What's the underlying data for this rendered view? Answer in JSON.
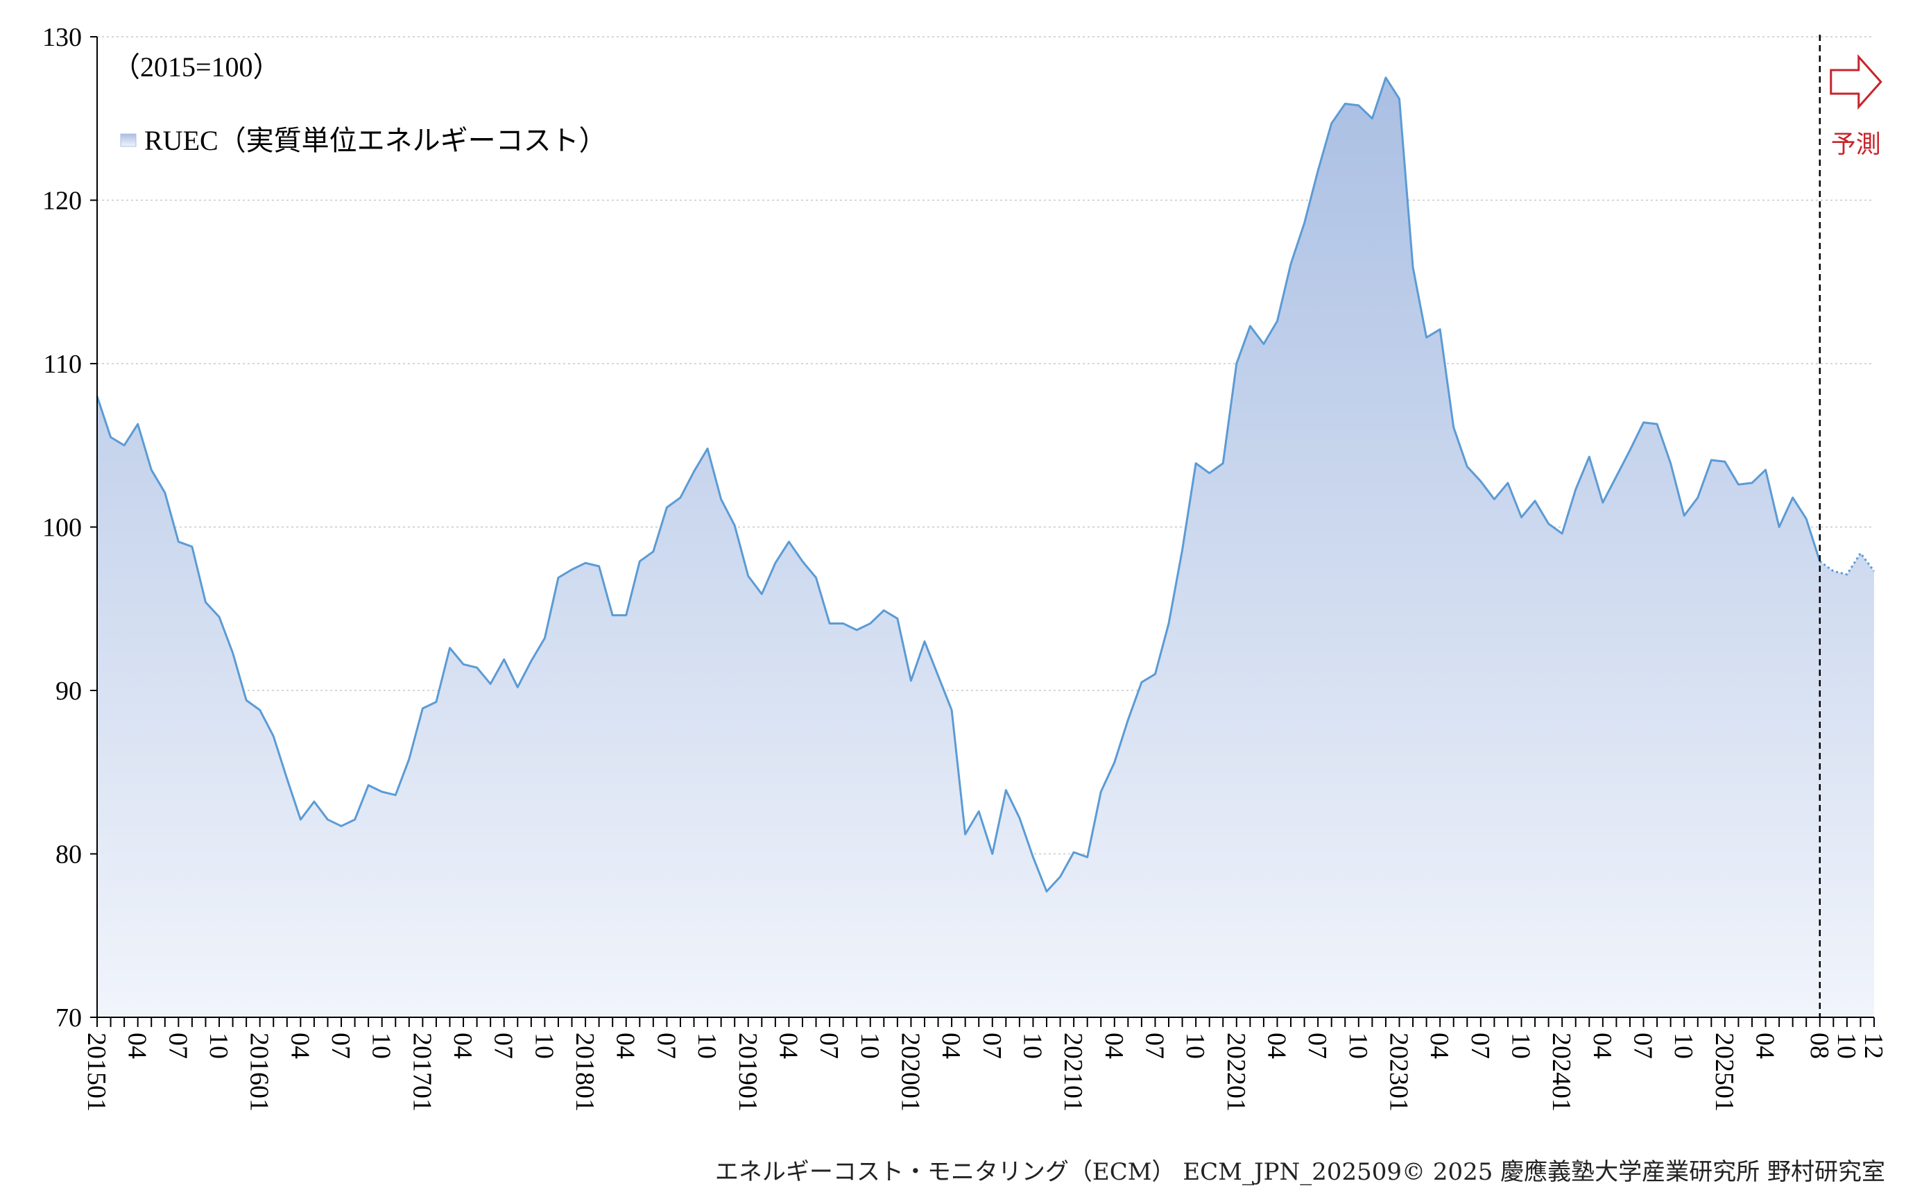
{
  "annotations": {
    "base_note": "（2015=100）",
    "legend_label": "RUEC（実質単位エネルギーコスト）",
    "forecast_label": "予測"
  },
  "footer": {
    "source": "エネルギーコスト・モニタリング（ECM） ECM_JPN_202509© 2025 慶應義塾大学産業研究所 野村研究室"
  },
  "colors": {
    "line": "#5b9bd5",
    "fill_top": "#aabfe3",
    "fill_bottom": "#f1f4fb",
    "forecast": "#c8242b",
    "grid": "#c8c8c8"
  },
  "chart_data": {
    "type": "area",
    "title": "",
    "xlabel": "",
    "ylabel": "",
    "ylim": [
      70,
      130
    ],
    "yticks": [
      70,
      80,
      90,
      100,
      110,
      120,
      130
    ],
    "grid": "horizontal-dotted",
    "legend_position": "top-left",
    "x_start": "2015-01",
    "x_end": "2025-12",
    "forecast_start": "2025-08",
    "x_tick_labels": [
      "201501",
      "04",
      "07",
      "10",
      "201601",
      "04",
      "07",
      "10",
      "201701",
      "04",
      "07",
      "10",
      "201801",
      "04",
      "07",
      "10",
      "201901",
      "04",
      "07",
      "10",
      "202001",
      "04",
      "07",
      "10",
      "202101",
      "04",
      "07",
      "10",
      "202201",
      "04",
      "07",
      "10",
      "202301",
      "04",
      "07",
      "10",
      "202401",
      "04",
      "07",
      "10",
      "202501",
      "04",
      "08",
      "10",
      "12"
    ],
    "series": [
      {
        "name": "RUEC（実質単位エネルギーコスト）",
        "values": [
          108.0,
          105.5,
          105.0,
          106.3,
          103.5,
          102.1,
          99.1,
          98.8,
          95.4,
          94.5,
          92.3,
          89.4,
          88.8,
          87.2,
          84.6,
          82.1,
          83.2,
          82.1,
          81.7,
          82.1,
          84.2,
          83.8,
          83.6,
          85.8,
          88.9,
          89.3,
          92.6,
          91.6,
          91.4,
          90.4,
          91.9,
          90.2,
          91.8,
          93.2,
          96.9,
          97.4,
          97.8,
          97.6,
          94.6,
          94.6,
          97.9,
          98.5,
          101.2,
          101.8,
          103.4,
          104.8,
          101.7,
          100.1,
          97.0,
          95.9,
          97.8,
          99.1,
          97.9,
          96.9,
          94.1,
          94.1,
          93.7,
          94.1,
          94.9,
          94.4,
          90.6,
          93.0,
          90.9,
          88.8,
          81.2,
          82.6,
          80.0,
          83.9,
          82.2,
          79.8,
          77.7,
          78.6,
          80.1,
          79.8,
          83.8,
          85.6,
          88.2,
          90.5,
          91.0,
          94.1,
          98.6,
          103.9,
          103.3,
          103.9,
          110.0,
          112.3,
          111.2,
          112.6,
          116.1,
          118.6,
          121.8,
          124.7,
          125.9,
          125.8,
          125.0,
          127.5,
          126.2,
          115.9,
          111.6,
          112.1,
          106.1,
          103.7,
          102.8,
          101.7,
          102.7,
          100.6,
          101.6,
          100.2,
          99.6,
          102.3,
          104.3,
          101.5,
          103.1,
          104.7,
          106.4,
          106.3,
          103.9,
          100.7,
          101.8,
          104.1,
          104.0,
          102.6,
          102.7,
          103.5,
          100.0,
          101.8,
          100.5,
          97.9
        ],
        "forecast_values": [
          97.9,
          97.3,
          97.1,
          98.4,
          97.3
        ]
      }
    ]
  }
}
